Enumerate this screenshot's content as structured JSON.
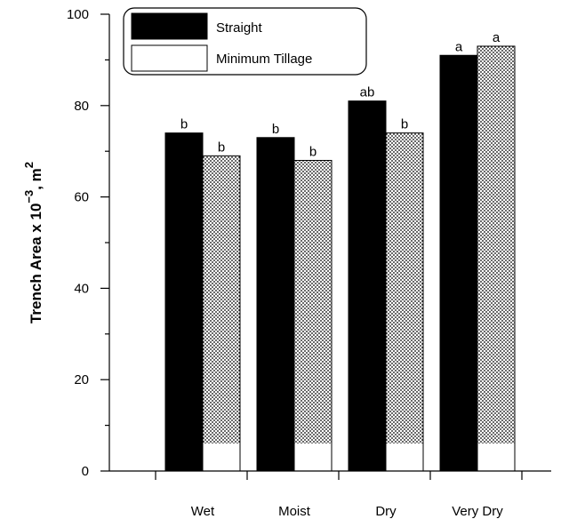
{
  "chart_data": {
    "type": "bar",
    "categories": [
      "Wet",
      "Moist",
      "Dry",
      "Very Dry"
    ],
    "series": [
      {
        "name": "Straight",
        "values": [
          74,
          73,
          81,
          91
        ],
        "labels": [
          "b",
          "b",
          "ab",
          "a"
        ],
        "color": "#000000"
      },
      {
        "name": "Minimum Tillage",
        "values": [
          69,
          68,
          74,
          93
        ],
        "labels": [
          "b",
          "b",
          "b",
          "a"
        ],
        "color": "#ffffff",
        "pattern": "stipple"
      }
    ],
    "ylabel_main": "Trench Area x 10",
    "ylabel_exp": "−3",
    "ylabel_unit": ", m",
    "ylabel_unit_exp": "2",
    "ylim": [
      0,
      100
    ],
    "yticks": [
      "0",
      "20",
      "40",
      "60",
      "80",
      "100"
    ],
    "ytick_values": [
      0,
      20,
      40,
      60,
      80,
      100
    ],
    "legend_position": "top-left",
    "grid": false
  }
}
